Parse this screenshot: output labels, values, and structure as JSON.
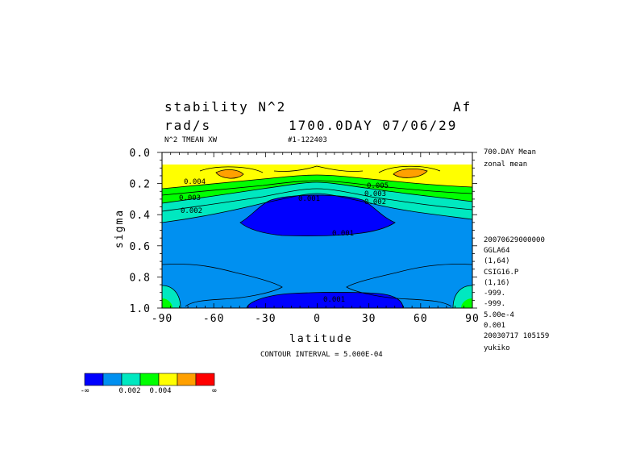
{
  "header": {
    "title_left": "stability N^2",
    "title_right": "Af",
    "units": "rad/s",
    "time": "1700.0DAY 07/06/29",
    "sub_left": "N^2 TMEAN XW",
    "sub_id": "#1-122403"
  },
  "side_info": [
    "700.DAY Mean",
    "zonal mean",
    "20070629000000",
    "GGLA64",
    "(1,64)",
    "CSIG16.P",
    "(1,16)",
    "-999.",
    "-999.",
    "5.00e-4",
    "0.001",
    "20030717 105159",
    "yukiko"
  ],
  "contour_interval": "CONTOUR INTERVAL = 5.000E-04",
  "contour_labels": [
    "0.004",
    "0.003",
    "0.002",
    "0.001",
    "0.001",
    "0.005",
    "0.003",
    "0.002",
    "0.001"
  ],
  "colorbar": {
    "colors": [
      "#0000ff",
      "#0090f0",
      "#00e8c0",
      "#00ff00",
      "#ffff00",
      "#ffa000",
      "#ff0000"
    ],
    "labels": [
      "-∞",
      "0.002",
      "0.004",
      "∞"
    ]
  },
  "chart_data": {
    "type": "contour",
    "title": "stability N^2",
    "xlabel": "latitude",
    "ylabel": "sigma",
    "xlim": [
      -90,
      90
    ],
    "ylim": [
      1.0,
      0.0
    ],
    "x_ticks": [
      "-90",
      "-60",
      "-30",
      "0",
      "30",
      "60",
      "90"
    ],
    "y_ticks": [
      "0.0",
      "0.2",
      "0.4",
      "0.6",
      "0.8",
      "1.0"
    ],
    "contour_interval": 0.0005,
    "levels": [
      0.001,
      0.0015,
      0.002,
      0.0025,
      0.003,
      0.0035,
      0.004,
      0.0045,
      0.005
    ],
    "regions": [
      {
        "name": "top",
        "sigma_range": [
          0.08,
          0.16
        ],
        "fill": "#ffff00"
      },
      {
        "name": "band-green",
        "sigma_range": [
          0.16,
          0.25
        ],
        "fill": "#00ff00"
      },
      {
        "name": "band-cyan",
        "sigma_range": [
          0.25,
          0.35
        ],
        "fill": "#00e8c0"
      },
      {
        "name": "middle",
        "sigma_range": [
          0.35,
          1.0
        ],
        "fill": "#0090f0"
      },
      {
        "name": "core-low",
        "center_lat": 0,
        "sigma_range": [
          0.3,
          0.55
        ],
        "fill": "#0000ff"
      },
      {
        "name": "surface-low",
        "lat_range": [
          -45,
          55
        ],
        "sigma_range": [
          0.93,
          1.0
        ],
        "fill": "#0000ff"
      },
      {
        "name": "max-nh",
        "center_lat": 60,
        "sigma": 0.13,
        "fill": "#ffa000"
      },
      {
        "name": "max-sh",
        "center_lat": -58,
        "sigma": 0.14,
        "fill": "#ffa000"
      }
    ]
  }
}
